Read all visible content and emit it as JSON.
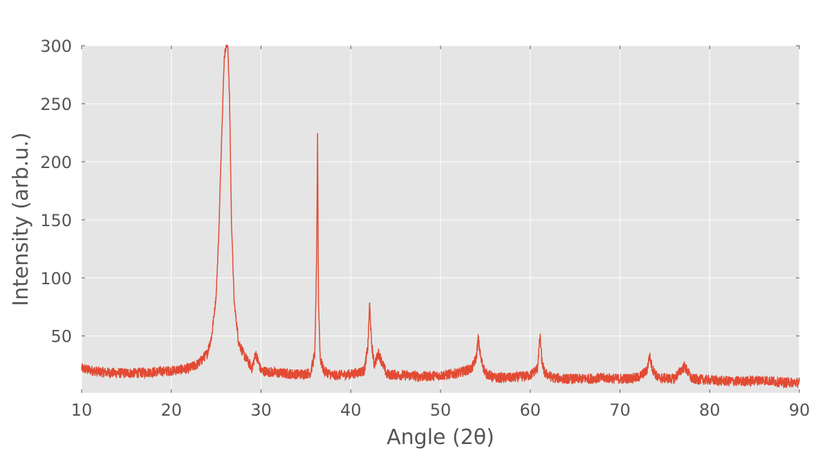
{
  "colors": {
    "background": "#ffffff",
    "plot_area": "#e5e5e5",
    "grid": "#ffffff",
    "line": "#e24a33",
    "text": "#555555",
    "tick": "#555555"
  },
  "chart_data": {
    "type": "line",
    "title": "",
    "xlabel": "Angle (2θ)",
    "ylabel": "Intensity (arb.u.)",
    "xlim": [
      10,
      90
    ],
    "ylim": [
      1,
      300
    ],
    "x_ticks": [
      10,
      20,
      30,
      40,
      50,
      60,
      70,
      80,
      90
    ],
    "y_ticks": [
      50,
      100,
      150,
      200,
      250,
      300
    ],
    "grid": true,
    "legend": "none",
    "series": [
      {
        "x": [
          10,
          12,
          14,
          16,
          18,
          20,
          22,
          23,
          24,
          24.5,
          25,
          25.3,
          25.6,
          25.9,
          26.1,
          26.3,
          26.5,
          26.7,
          27.0,
          27.5,
          28,
          29,
          29.4,
          30,
          32,
          34,
          35.5,
          36.0,
          36.2,
          36.3,
          36.4,
          36.6,
          37,
          38,
          40,
          41.5,
          41.9,
          42.1,
          42.3,
          42.6,
          43.1,
          44,
          46,
          48,
          50,
          52,
          53.5,
          54.0,
          54.2,
          54.5,
          55,
          56,
          58,
          60,
          60.8,
          61.1,
          61.3,
          61.6,
          62.5,
          64,
          66,
          68,
          70,
          72,
          73.0,
          73.3,
          73.6,
          74.2,
          76,
          77.2,
          78,
          80,
          82,
          84,
          86,
          88,
          90
        ],
        "y": [
          22,
          19,
          18,
          18,
          19,
          20,
          22,
          26,
          35,
          50,
          85,
          140,
          220,
          290,
          300,
          300,
          250,
          150,
          80,
          45,
          35,
          22,
          35,
          20,
          18,
          17,
          18,
          35,
          120,
          222,
          80,
          30,
          20,
          16,
          17,
          20,
          40,
          78,
          45,
          25,
          35,
          17,
          16,
          15,
          16,
          18,
          22,
          32,
          48,
          30,
          18,
          14,
          14,
          16,
          22,
          50,
          28,
          18,
          14,
          13,
          13,
          14,
          13,
          14,
          20,
          33,
          22,
          14,
          13,
          24,
          13,
          12,
          11,
          11,
          12,
          10,
          10
        ]
      }
    ]
  }
}
